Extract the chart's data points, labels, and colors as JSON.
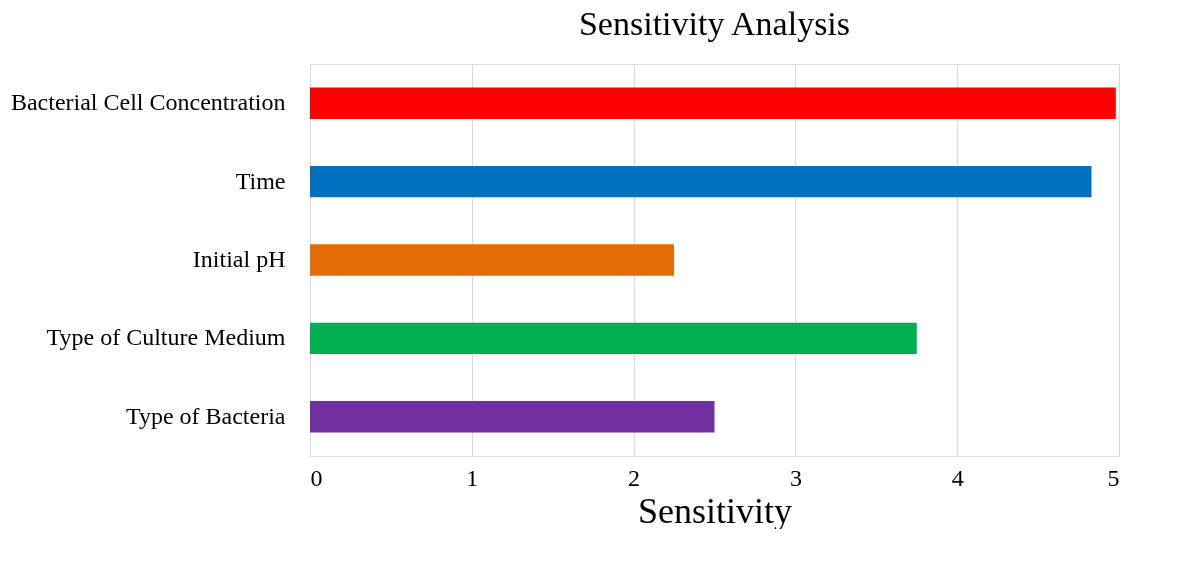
{
  "chart_data": {
    "type": "bar",
    "orientation": "horizontal",
    "title": "Sensitivity Analysis",
    "xlabel": "Sensitivity",
    "categories": [
      "Bacterial Cell Concentration",
      "Time",
      "Initial pH",
      "Type of Culture Medium",
      "Type of Bacteria"
    ],
    "values": [
      4.98,
      4.83,
      2.25,
      3.75,
      2.5
    ],
    "colors": [
      "#ff0000",
      "#0070c0",
      "#e36c09",
      "#00b050",
      "#7030a0"
    ],
    "xlim": [
      0,
      5
    ],
    "xticks": [
      0,
      1,
      2,
      3,
      4,
      5
    ],
    "grid": "x",
    "legend": false
  }
}
